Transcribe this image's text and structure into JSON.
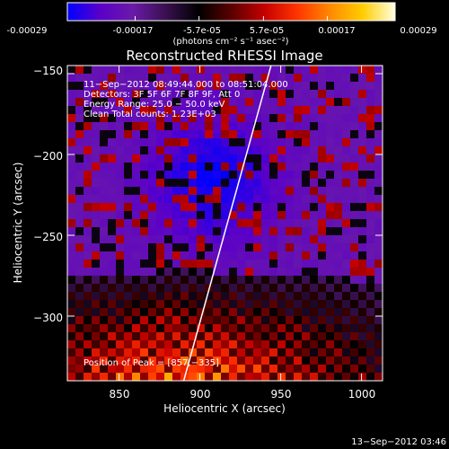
{
  "colorbar": {
    "tick_labels": [
      "-0.00029",
      "-0.00017",
      "-5.7e-05",
      "5.7e-05",
      "0.00017",
      "0.00029"
    ],
    "tick_values": [
      -0.00029,
      -0.00017,
      -5.7e-05,
      5.7e-05,
      0.00017,
      0.00029
    ],
    "range": [
      -0.00029,
      0.00029
    ],
    "units_label": "(photons cm⁻² s⁻¹ asec⁻²)",
    "colors": [
      "#0000ff",
      "#5a00c8",
      "#6a1aa8",
      "#3a1050",
      "#000000",
      "#5a0000",
      "#c40000",
      "#ff3300",
      "#ff8800",
      "#ffcc00",
      "#ffffe0"
    ]
  },
  "chart_data": {
    "type": "heatmap",
    "title": "Reconstructed RHESSI Image",
    "xlabel": "Heliocentric X (arcsec)",
    "ylabel": "Heliocentric Y (arcsec)",
    "xlim": [
      818,
      1013
    ],
    "ylim": [
      -340,
      -145
    ],
    "x_ticks": [
      850,
      900,
      950,
      1000
    ],
    "y_ticks": [
      -300,
      -250,
      -200,
      -150
    ],
    "x_tick_labels": [
      "850",
      "900",
      "950",
      "1000"
    ],
    "y_tick_labels": [
      "−300",
      "−250",
      "−200",
      "−150"
    ],
    "annotations": [
      "11−Sep−2012 08:49:44.000 to 08:51:04.000",
      "Detectors: 3F 5F 6F 7F 8F 9F, Att 0",
      "Energy Range: 25.0 − 50.0 keV",
      "Clean     Total counts: 1.23E+03"
    ],
    "peak_label": "Position of Peak = [857,−335]",
    "peak": [
      857,
      -335
    ],
    "limb_line": [
      [
        890,
        -340
      ],
      [
        944,
        -145
      ]
    ],
    "limb_color": "#ffffff"
  },
  "footer_timestamp": "13−Sep−2012 03:46"
}
